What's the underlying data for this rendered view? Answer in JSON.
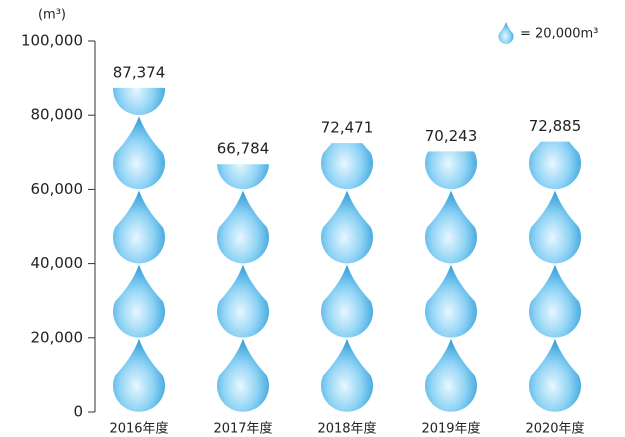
{
  "chart_data": {
    "type": "pictogram",
    "y_label": "(m³)",
    "legend_label": "= 20,000m³",
    "unit_value": 20000,
    "categories": [
      "2016年度",
      "2017年度",
      "2018年度",
      "2019年度",
      "2020年度"
    ],
    "values": [
      87374,
      66784,
      72471,
      70243,
      72885
    ],
    "value_labels": [
      "87,374",
      "66,784",
      "72,471",
      "70,243",
      "72,885"
    ],
    "color": "#5bb8e8",
    "ylim": [
      0,
      100000
    ],
    "yticks": [
      0,
      {
        "value": 20000,
        "label": "20,000"
      },
      {
        "value": 40000,
        "label": "40,000"
      },
      {
        "value": 60000,
        "label": "60,000"
      },
      {
        "value": 80000,
        "label": "80,000"
      },
      {
        "value": 100000,
        "label": "100,000"
      }
    ]
  }
}
